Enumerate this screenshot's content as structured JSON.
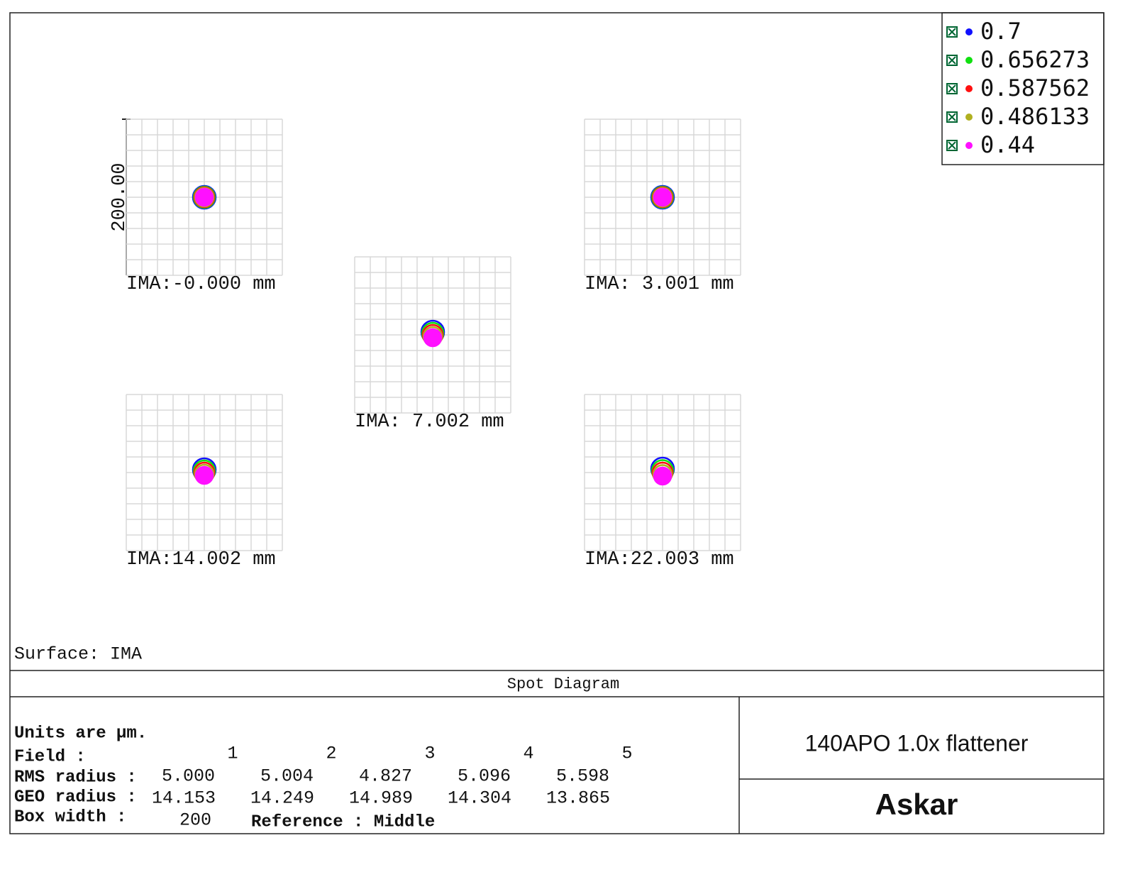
{
  "legend": [
    {
      "label": "0.7",
      "color": "#1010ff"
    },
    {
      "label": "0.656273",
      "color": "#10e010"
    },
    {
      "label": "0.587562",
      "color": "#ff1010"
    },
    {
      "label": "0.486133",
      "color": "#b0b020"
    },
    {
      "label": "0.44",
      "color": "#ff10ff"
    }
  ],
  "scale_bar_label": "200.00",
  "panels": [
    {
      "label": "IMA:-0.000 mm"
    },
    {
      "label": "IMA: 3.001 mm"
    },
    {
      "label": "IMA: 7.002 mm"
    },
    {
      "label": "IMA:14.002 mm"
    },
    {
      "label": "IMA:22.003 mm"
    }
  ],
  "surface": "Surface: IMA",
  "title": "Spot Diagram",
  "info": {
    "units": "Units are µm.",
    "field_label": "Field :",
    "fields": [
      "1",
      "2",
      "3",
      "4",
      "5"
    ],
    "rms_label": "RMS radius :",
    "rms": [
      "5.000",
      "5.004",
      "4.827",
      "5.096",
      "5.598"
    ],
    "geo_label": "GEO radius :",
    "geo": [
      "14.153",
      "14.249",
      "14.989",
      "14.304",
      "13.865"
    ],
    "box_label": "Box width :",
    "box": "200",
    "reference": "Reference : Middle"
  },
  "product": "140APO 1.0x flattener",
  "brand": "Askar"
}
